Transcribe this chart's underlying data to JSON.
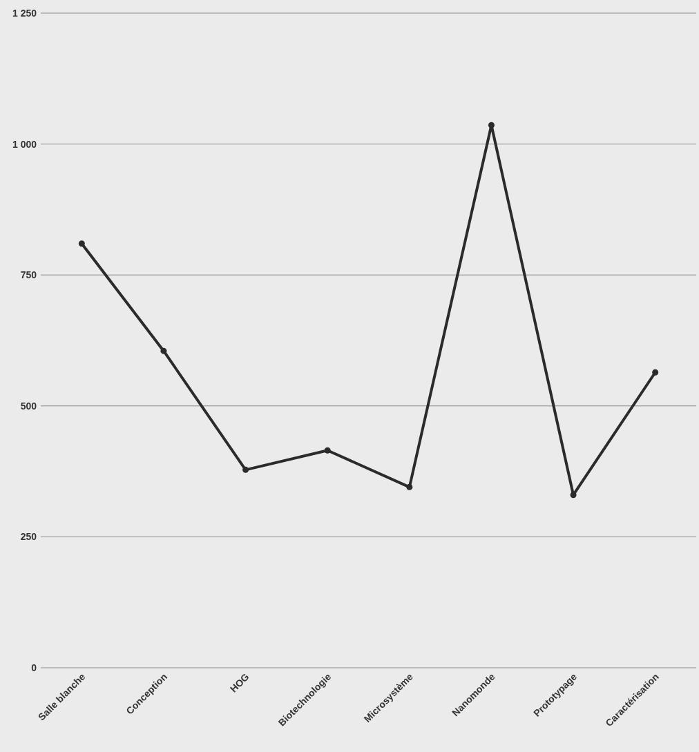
{
  "chart_data": {
    "type": "line",
    "categories": [
      "Salle blanche",
      "Conception",
      "HOG",
      "Biotechnologie",
      "Microsystème",
      "Nanomonde",
      "Prototypage",
      "Caractérisation"
    ],
    "series": [
      {
        "color": "#2b2b2b",
        "values": [
          810,
          605,
          378,
          415,
          345,
          1036,
          330,
          564
        ]
      }
    ],
    "ylim": [
      0,
      1250
    ],
    "yticks": [
      0,
      250,
      500,
      750,
      {
        "value": 1000,
        "label": "1 000"
      },
      {
        "value": 1250,
        "label": "1 250"
      }
    ],
    "grid": "y",
    "marker": "circle",
    "line_style": "solid"
  }
}
